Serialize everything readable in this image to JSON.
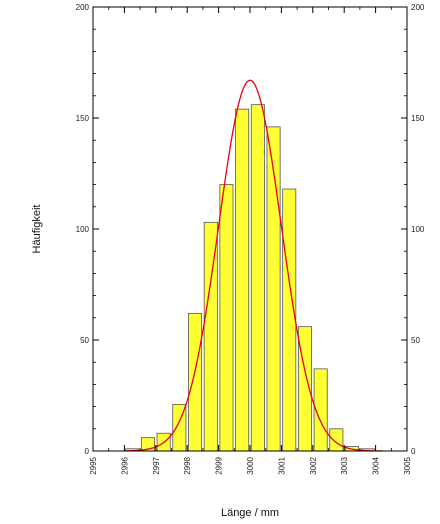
{
  "chart_data": {
    "type": "bar",
    "xlabel": "Länge / mm",
    "ylabel": "Häufigkeit",
    "xlim": [
      2995,
      3005
    ],
    "ylim": [
      0,
      200
    ],
    "x_ticks": [
      "2995",
      "2996",
      "2997",
      "2998",
      "2999",
      "3000",
      "3001",
      "3002",
      "3003",
      "3004",
      "3005"
    ],
    "y_ticks": [
      "0",
      "50",
      "100",
      "150",
      "200"
    ],
    "bin_width": 0.5,
    "bins": [
      {
        "x": 2996.25,
        "value": 1
      },
      {
        "x": 2996.75,
        "value": 6
      },
      {
        "x": 2997.25,
        "value": 8
      },
      {
        "x": 2997.75,
        "value": 21
      },
      {
        "x": 2998.25,
        "value": 62
      },
      {
        "x": 2998.75,
        "value": 103
      },
      {
        "x": 2999.25,
        "value": 120
      },
      {
        "x": 2999.75,
        "value": 154
      },
      {
        "x": 3000.25,
        "value": 156
      },
      {
        "x": 3000.75,
        "value": 146
      },
      {
        "x": 3001.25,
        "value": 118
      },
      {
        "x": 3001.75,
        "value": 56
      },
      {
        "x": 3002.25,
        "value": 37
      },
      {
        "x": 3002.75,
        "value": 10
      },
      {
        "x": 3003.25,
        "value": 2
      },
      {
        "x": 3003.75,
        "value": 1
      }
    ],
    "curve": {
      "type": "normal",
      "mean": 3000.0,
      "sd": 1.0,
      "peak": 167
    },
    "bar_fill": "#ffff33",
    "bar_stroke": "#555555",
    "curve_color": "#e8001c",
    "grid": false,
    "mirror_right_axis": true
  }
}
